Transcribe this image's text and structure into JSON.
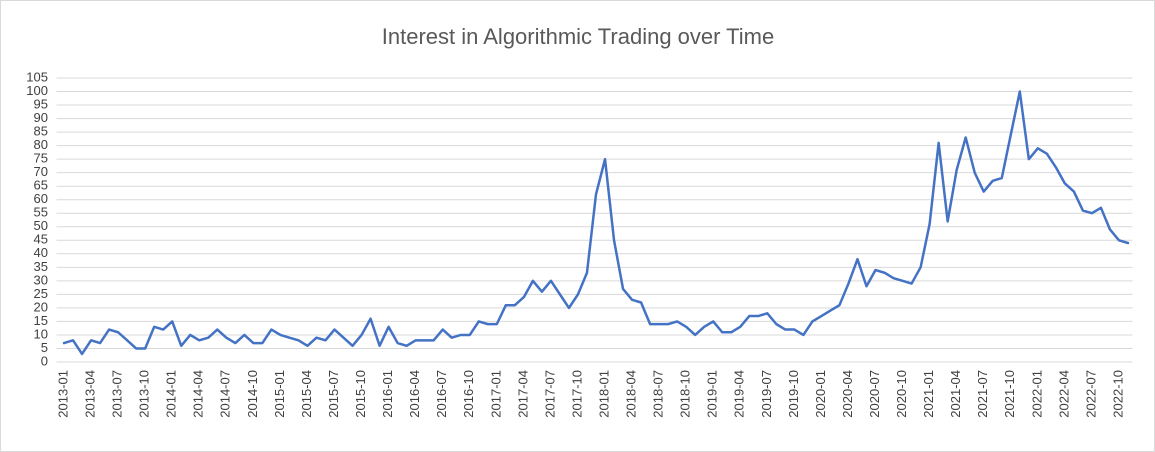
{
  "chart_data": {
    "type": "line",
    "title": "Interest in Algorithmic Trading over Time",
    "categories": [
      "2013-01",
      null,
      null,
      "2013-04",
      null,
      null,
      "2013-07",
      null,
      null,
      "2013-10",
      null,
      null,
      "2014-01",
      null,
      null,
      "2014-04",
      null,
      null,
      "2014-07",
      null,
      null,
      "2014-10",
      null,
      null,
      "2015-01",
      null,
      null,
      "2015-04",
      null,
      null,
      "2015-07",
      null,
      null,
      "2015-10",
      null,
      null,
      "2016-01",
      null,
      null,
      "2016-04",
      null,
      null,
      "2016-07",
      null,
      null,
      "2016-10",
      null,
      null,
      "2017-01",
      null,
      null,
      "2017-04",
      null,
      null,
      "2017-07",
      null,
      null,
      "2017-10",
      null,
      null,
      "2018-01",
      null,
      null,
      "2018-04",
      null,
      null,
      "2018-07",
      null,
      null,
      "2018-10",
      null,
      null,
      "2019-01",
      null,
      null,
      "2019-04",
      null,
      null,
      "2019-07",
      null,
      null,
      "2019-10",
      null,
      null,
      "2020-01",
      null,
      null,
      "2020-04",
      null,
      null,
      "2020-07",
      null,
      null,
      "2020-10",
      null,
      null,
      "2021-01",
      null,
      null,
      "2021-04",
      null,
      null,
      "2021-07",
      null,
      null,
      "2021-10",
      null,
      null,
      "2022-01",
      null,
      null,
      "2022-04",
      null,
      null,
      "2022-07",
      null,
      null,
      "2022-10",
      null
    ],
    "values": [
      7,
      8,
      3,
      8,
      7,
      12,
      11,
      8,
      5,
      5,
      13,
      12,
      15,
      6,
      10,
      8,
      9,
      12,
      9,
      7,
      10,
      7,
      7,
      12,
      10,
      9,
      8,
      6,
      9,
      8,
      12,
      9,
      6,
      10,
      16,
      6,
      13,
      7,
      6,
      8,
      8,
      8,
      12,
      9,
      10,
      10,
      15,
      14,
      14,
      21,
      21,
      24,
      30,
      26,
      30,
      25,
      20,
      25,
      33,
      62,
      75,
      45,
      27,
      23,
      22,
      14,
      14,
      14,
      15,
      13,
      10,
      13,
      15,
      11,
      11,
      13,
      17,
      17,
      18,
      14,
      12,
      12,
      10,
      15,
      17,
      19,
      21,
      29,
      38,
      28,
      34,
      33,
      31,
      30,
      29,
      35,
      51,
      81,
      52,
      71,
      83,
      70,
      63,
      67,
      68,
      84,
      100,
      75,
      79,
      77,
      72,
      66,
      63,
      56,
      55,
      57,
      49,
      45,
      44
    ],
    "color": "#4472c4",
    "ylim": [
      0,
      105
    ],
    "yticks": [
      0,
      5,
      10,
      15,
      20,
      25,
      30,
      35,
      40,
      45,
      50,
      55,
      60,
      65,
      70,
      75,
      80,
      85,
      90,
      95,
      100,
      105
    ],
    "grid": true
  }
}
